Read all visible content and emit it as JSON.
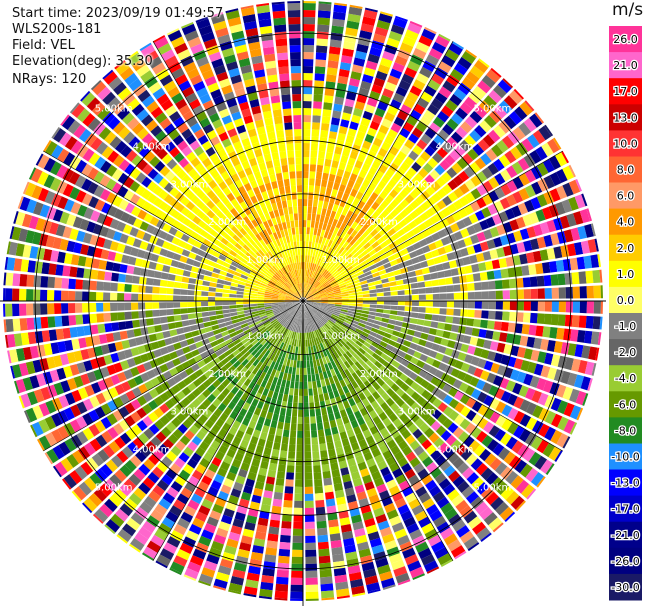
{
  "header": {
    "start_time": "Start time: 2023/09/19 01:49:57",
    "instrument": "WLS200s-181",
    "field": "Field: VEL",
    "elevation": "Elevation(deg): 35.30",
    "nrays": "NRays: 120"
  },
  "chart_data": {
    "type": "ppi-polar",
    "field": "VEL",
    "units": "m/s",
    "nrays": 120,
    "range_rings_km": [
      1.0,
      2.0,
      3.0,
      4.0,
      5.0
    ],
    "range_ring_labels": [
      "1.00km",
      "2.00km",
      "3.00km",
      "4.00km",
      "5.00km"
    ],
    "max_range_km": 5.6,
    "sectors": [
      {
        "azimuth_deg": [
          -95,
          95
        ],
        "dominant_velocity_ms": 2.0,
        "inner_velocity_ms": 4.0
      },
      {
        "azimuth_deg": [
          95,
          265
        ],
        "dominant_velocity_ms": -4.0,
        "inner_velocity_ms": -6.0
      }
    ],
    "colorbar": {
      "ticks": [
        "26.0",
        "21.0",
        "17.0",
        "13.0",
        "10.0",
        "8.0",
        "6.0",
        "4.0",
        "2.0",
        "1.0",
        "0.0",
        "-1.0",
        "-2.0",
        "-4.0",
        "-6.0",
        "-8.0",
        "-10.0",
        "-13.0",
        "-17.0",
        "-21.0",
        "-26.0",
        "-30.0"
      ],
      "colors": [
        "#ff3399",
        "#ff66cc",
        "#ff0000",
        "#cc0000",
        "#ff3333",
        "#ff6633",
        "#ff9966",
        "#ff9900",
        "#ffcc00",
        "#ffff00",
        "#ffff66",
        "#808080",
        "#666666",
        "#99cc33",
        "#669900",
        "#228b22",
        "#1e90ff",
        "#0000ff",
        "#0000cc",
        "#00008b",
        "#000080",
        "#1a1a66"
      ]
    }
  }
}
